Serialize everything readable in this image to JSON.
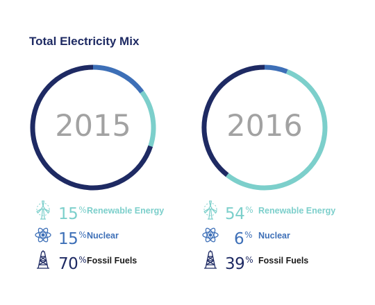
{
  "title": "Total Electricity Mix",
  "colors": {
    "renewable": "#7ccfcb",
    "nuclear": "#3d6fb7",
    "fossil": "#1e2a63",
    "year_text": "#a2a2a2"
  },
  "chart_data": [
    {
      "type": "pie",
      "subtype": "donut",
      "title": "2015",
      "categories": [
        "Renewable Energy",
        "Nuclear",
        "Fossil Fuels"
      ],
      "values": [
        15,
        15,
        70
      ],
      "start_order": [
        "Nuclear",
        "Renewable Energy",
        "Fossil Fuels"
      ],
      "legend": [
        {
          "icon": "wind-turbine-icon",
          "value": "15",
          "unit": "%",
          "label": "Renewable Energy"
        },
        {
          "icon": "atom-icon",
          "value": "15",
          "unit": "%",
          "label": "Nuclear"
        },
        {
          "icon": "oil-derrick-icon",
          "value": "70",
          "unit": "%",
          "label": "Fossil Fuels"
        }
      ]
    },
    {
      "type": "pie",
      "subtype": "donut",
      "title": "2016",
      "categories": [
        "Renewable Energy",
        "Nuclear",
        "Fossil Fuels"
      ],
      "values": [
        54,
        6,
        39
      ],
      "start_order": [
        "Nuclear",
        "Renewable Energy",
        "Fossil Fuels"
      ],
      "legend": [
        {
          "icon": "wind-turbine-icon",
          "value": "54",
          "unit": "%",
          "label": "Renewable Energy"
        },
        {
          "icon": "atom-icon",
          "value": "6",
          "unit": "%",
          "label": "Nuclear"
        },
        {
          "icon": "oil-derrick-icon",
          "value": "39",
          "unit": "%",
          "label": "Fossil Fuels"
        }
      ]
    }
  ]
}
